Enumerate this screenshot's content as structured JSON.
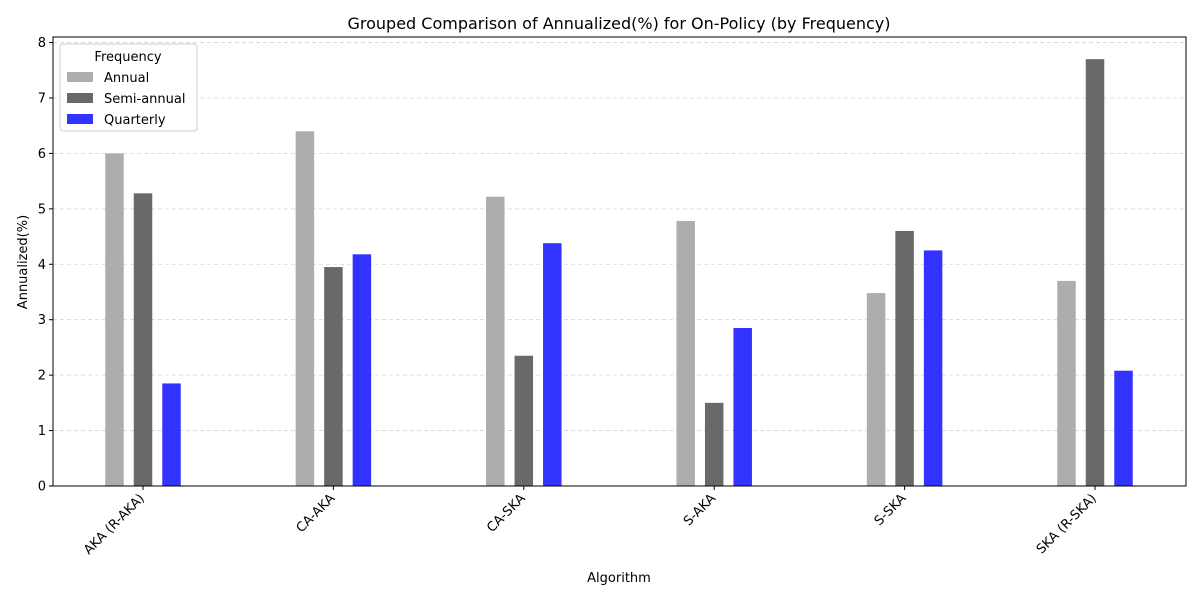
{
  "chart_data": {
    "type": "bar",
    "title": "Grouped Comparison of Annualized(%) for On-Policy (by Frequency)",
    "xlabel": "Algorithm",
    "ylabel": "Annualized(%)",
    "categories": [
      "AKA (R-AKA)",
      "CA-AKA",
      "CA-SKA",
      "S-AKA",
      "S-SKA",
      "SKA (R-SKA)"
    ],
    "series": [
      {
        "name": "Annual",
        "color": "#adadad",
        "values": [
          6.0,
          6.4,
          5.22,
          4.78,
          3.48,
          3.7
        ]
      },
      {
        "name": "Semi-annual",
        "color": "#696969",
        "values": [
          5.28,
          3.95,
          2.35,
          1.5,
          4.6,
          7.7
        ]
      },
      {
        "name": "Quarterly",
        "color": "#3333ff",
        "values": [
          1.85,
          4.18,
          4.38,
          2.85,
          4.25,
          2.08
        ]
      }
    ],
    "ylim": [
      0,
      8.1
    ],
    "yticks": [
      0,
      1,
      2,
      3,
      4,
      5,
      6,
      7,
      8
    ],
    "grid": "y-dashed",
    "legend": {
      "title": "Frequency",
      "position": "upper-left"
    }
  }
}
